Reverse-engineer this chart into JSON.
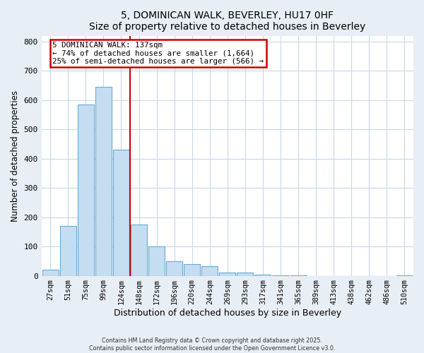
{
  "title": "5, DOMINICAN WALK, BEVERLEY, HU17 0HF",
  "subtitle": "Size of property relative to detached houses in Beverley",
  "xlabel": "Distribution of detached houses by size in Beverley",
  "ylabel": "Number of detached properties",
  "bar_color": "#c5ddf0",
  "bar_edge_color": "#6aaad4",
  "background_color": "#e8eef5",
  "plot_bg_color": "#ffffff",
  "categories": [
    "27sqm",
    "51sqm",
    "75sqm",
    "99sqm",
    "124sqm",
    "148sqm",
    "172sqm",
    "196sqm",
    "220sqm",
    "244sqm",
    "269sqm",
    "293sqm",
    "317sqm",
    "341sqm",
    "365sqm",
    "389sqm",
    "413sqm",
    "438sqm",
    "462sqm",
    "486sqm",
    "510sqm"
  ],
  "values": [
    20,
    170,
    585,
    645,
    430,
    175,
    100,
    50,
    40,
    33,
    10,
    12,
    3,
    1,
    1,
    0,
    0,
    0,
    0,
    0,
    2
  ],
  "vline_x": 4.5,
  "vline_color": "#cc0000",
  "annotation_line1": "5 DOMINICAN WALK: 137sqm",
  "annotation_line2": "← 74% of detached houses are smaller (1,664)",
  "annotation_line3": "25% of semi-detached houses are larger (566) →",
  "annotation_box_color": "#ffffff",
  "annotation_box_edge_color": "#cc0000",
  "ylim": [
    0,
    820
  ],
  "yticks": [
    0,
    100,
    200,
    300,
    400,
    500,
    600,
    700,
    800
  ],
  "footnote1": "Contains HM Land Registry data © Crown copyright and database right 2025.",
  "footnote2": "Contains public sector information licensed under the Open Government Licence v3.0."
}
